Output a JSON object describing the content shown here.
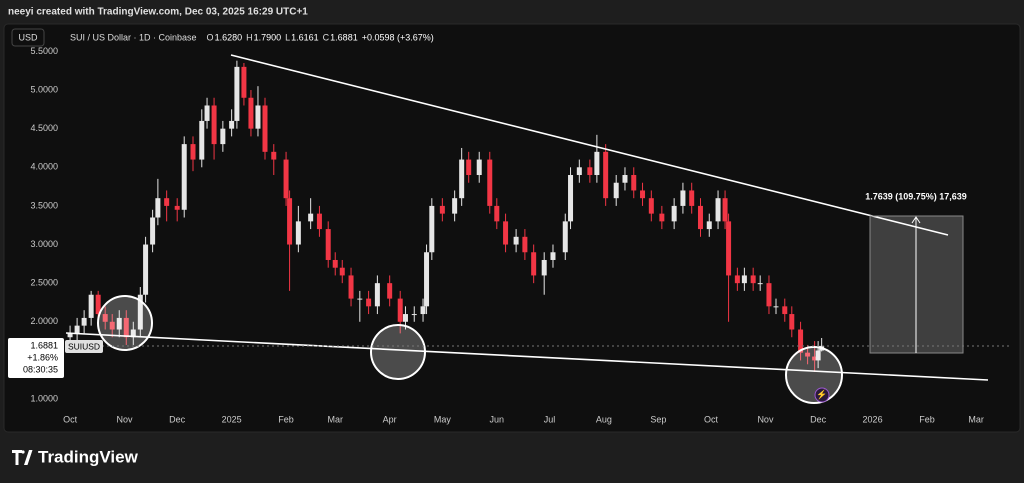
{
  "header": {
    "credit": "neeyi created with TradingView.com, Dec 03, 2025 16:29 UTC+1",
    "currency": "USD",
    "logo": "TradingView"
  },
  "chart_data": {
    "type": "candlestick",
    "title": "SUI / US Dollar · 1D · Coinbase",
    "ohlc_legend": [
      {
        "key": "O",
        "text": "1.6280"
      },
      {
        "key": "H",
        "text": "1.7900"
      },
      {
        "key": "L",
        "text": "1.6161"
      },
      {
        "key": "C",
        "text": "1.6881"
      }
    ],
    "change": "+0.0598 (+3.67%)",
    "symbol": "SUIUSD",
    "last_price": "1.6881",
    "last_change": "+1.86%",
    "countdown": "08:30:35",
    "measure_label": "1.7639 (109.75%) 17,639",
    "up_color": "#e6e6e6",
    "down_color": "#f23645",
    "grid": false,
    "x": [
      0,
      4,
      8,
      12,
      16,
      20,
      24,
      28,
      32,
      36,
      40,
      43,
      47,
      50,
      55,
      61,
      65,
      70,
      75,
      78,
      82,
      87,
      92,
      95,
      99,
      103,
      107,
      111,
      116,
      123,
      125,
      130,
      137,
      142,
      147,
      151,
      155,
      160,
      165,
      170,
      175,
      182,
      188,
      191,
      196,
      201,
      203,
      206,
      212,
      219,
      223,
      227,
      233,
      239,
      243,
      248,
      254,
      259,
      264,
      270,
      275,
      282,
      285,
      290,
      296,
      300,
      305,
      311,
      316,
      321,
      326,
      331,
      337,
      344,
      349,
      354,
      359,
      364,
      369,
      373,
      375,
      380,
      384,
      389,
      393,
      398,
      402,
      407,
      411,
      416,
      420,
      424,
      426,
      428
    ],
    "open": [
      1.8,
      1.85,
      1.95,
      2.05,
      2.35,
      2.1,
      2.0,
      1.9,
      2.05,
      1.8,
      1.9,
      2.35,
      3.0,
      3.35,
      3.6,
      3.5,
      3.45,
      4.3,
      4.1,
      4.6,
      4.8,
      4.3,
      4.5,
      4.6,
      5.3,
      4.9,
      4.5,
      4.8,
      4.2,
      4.1,
      3.6,
      3.0,
      3.3,
      3.4,
      3.2,
      2.8,
      2.7,
      2.6,
      2.3,
      2.3,
      2.2,
      2.5,
      2.3,
      2.0,
      2.1,
      2.1,
      2.2,
      2.9,
      3.5,
      3.4,
      3.6,
      4.1,
      3.9,
      4.1,
      3.5,
      3.3,
      3.0,
      3.1,
      2.9,
      2.6,
      2.8,
      2.9,
      3.3,
      3.9,
      4.0,
      3.9,
      4.2,
      3.6,
      3.8,
      3.9,
      3.7,
      3.6,
      3.4,
      3.3,
      3.5,
      3.7,
      3.5,
      3.2,
      3.3,
      3.6,
      3.3,
      2.6,
      2.5,
      2.6,
      2.5,
      2.5,
      2.2,
      2.2,
      2.1,
      1.9,
      1.6,
      1.55,
      1.5,
      1.628
    ],
    "high": [
      1.95,
      2.05,
      2.15,
      2.4,
      2.4,
      2.2,
      2.1,
      2.15,
      2.15,
      2.0,
      2.45,
      3.1,
      3.45,
      3.85,
      3.7,
      3.6,
      4.4,
      4.4,
      4.75,
      4.9,
      4.9,
      4.6,
      4.75,
      5.38,
      5.35,
      5.0,
      5.05,
      4.9,
      4.3,
      4.2,
      3.7,
      3.5,
      3.6,
      3.5,
      3.3,
      2.9,
      2.8,
      2.7,
      2.4,
      2.4,
      2.6,
      2.6,
      2.4,
      2.2,
      2.2,
      2.3,
      3.0,
      3.6,
      3.6,
      3.7,
      4.25,
      4.2,
      4.2,
      4.2,
      3.6,
      3.4,
      3.2,
      3.2,
      3.0,
      2.9,
      3.0,
      3.4,
      4.0,
      4.1,
      4.1,
      4.42,
      4.3,
      3.9,
      4.0,
      4.0,
      3.8,
      3.7,
      3.5,
      3.6,
      3.8,
      3.8,
      3.6,
      3.4,
      3.7,
      3.7,
      3.4,
      2.7,
      2.7,
      2.7,
      2.6,
      2.6,
      2.3,
      2.3,
      2.2,
      2.0,
      1.7,
      1.75,
      1.75,
      1.79
    ],
    "low": [
      1.7,
      1.75,
      1.85,
      1.95,
      2.0,
      1.9,
      1.8,
      1.8,
      1.7,
      1.7,
      1.8,
      2.25,
      2.9,
      3.25,
      3.3,
      3.3,
      3.35,
      3.95,
      4.0,
      4.5,
      4.1,
      4.2,
      4.4,
      4.5,
      4.8,
      4.4,
      4.4,
      4.1,
      3.9,
      3.5,
      2.4,
      2.9,
      3.2,
      3.1,
      2.7,
      2.6,
      2.5,
      2.2,
      2.0,
      2.1,
      2.1,
      2.2,
      1.85,
      1.9,
      2.0,
      2.0,
      2.1,
      2.8,
      3.3,
      3.3,
      3.5,
      3.8,
      3.8,
      3.4,
      3.2,
      2.9,
      2.9,
      2.8,
      2.5,
      2.35,
      2.7,
      2.8,
      3.2,
      3.8,
      3.8,
      3.8,
      3.5,
      3.5,
      3.7,
      3.6,
      3.5,
      3.3,
      3.2,
      3.2,
      3.4,
      3.4,
      3.1,
      3.1,
      3.2,
      3.2,
      2.0,
      2.4,
      2.4,
      2.4,
      2.4,
      2.1,
      2.1,
      2.0,
      1.8,
      1.5,
      1.45,
      1.35,
      1.4,
      1.6161
    ],
    "close": [
      1.85,
      1.95,
      2.05,
      2.35,
      2.1,
      2.0,
      1.9,
      2.05,
      1.8,
      1.9,
      2.35,
      3.0,
      3.35,
      3.6,
      3.5,
      3.45,
      4.3,
      4.1,
      4.6,
      4.8,
      4.3,
      4.5,
      4.6,
      5.3,
      4.9,
      4.5,
      4.8,
      4.2,
      4.1,
      3.6,
      3.0,
      3.3,
      3.4,
      3.2,
      2.8,
      2.7,
      2.6,
      2.3,
      2.3,
      2.2,
      2.5,
      2.3,
      2.0,
      2.1,
      2.1,
      2.2,
      2.9,
      3.5,
      3.4,
      3.6,
      4.1,
      3.9,
      4.1,
      3.5,
      3.3,
      3.0,
      3.1,
      2.9,
      2.6,
      2.8,
      2.9,
      3.3,
      3.9,
      4.0,
      3.9,
      4.2,
      3.6,
      3.8,
      3.9,
      3.7,
      3.6,
      3.4,
      3.3,
      3.5,
      3.7,
      3.5,
      3.2,
      3.3,
      3.6,
      3.3,
      2.6,
      2.5,
      2.6,
      2.5,
      2.5,
      2.2,
      2.2,
      2.1,
      1.9,
      1.6,
      1.55,
      1.5,
      1.628,
      1.6881
    ],
    "xlim": [
      -4.6,
      536.4
    ],
    "xticks": [
      {
        "value": 0,
        "label": "Oct"
      },
      {
        "value": 31,
        "label": "Nov"
      },
      {
        "value": 61,
        "label": "Dec"
      },
      {
        "value": 92,
        "label": "2025"
      },
      {
        "value": 123,
        "label": "Feb"
      },
      {
        "value": 151,
        "label": "Mar"
      },
      {
        "value": 182,
        "label": "Apr"
      },
      {
        "value": 212,
        "label": "May"
      },
      {
        "value": 243,
        "label": "Jun"
      },
      {
        "value": 273,
        "label": "Jul"
      },
      {
        "value": 304,
        "label": "Aug"
      },
      {
        "value": 335,
        "label": "Sep"
      },
      {
        "value": 365,
        "label": "Oct"
      },
      {
        "value": 396,
        "label": "Nov"
      },
      {
        "value": 426,
        "label": "Dec"
      },
      {
        "value": 457,
        "label": "2026"
      },
      {
        "value": 488,
        "label": "Feb"
      },
      {
        "value": 516,
        "label": "Mar"
      }
    ],
    "ylim": [
      0.858,
      5.583
    ],
    "yticks": [
      {
        "value": 1,
        "label": "1.0000"
      },
      {
        "value": 1.5,
        "label": "1.5000"
      },
      {
        "value": 2,
        "label": "2.0000"
      },
      {
        "value": 2.5,
        "label": "2.5000"
      },
      {
        "value": 3,
        "label": "3.0000"
      },
      {
        "value": 3.5,
        "label": "3.5000"
      },
      {
        "value": 4,
        "label": "4.0000"
      },
      {
        "value": 4.5,
        "label": "4.5000"
      },
      {
        "value": 5,
        "label": "5.0000"
      },
      {
        "value": 5.5,
        "label": "5.5000"
      }
    ]
  }
}
